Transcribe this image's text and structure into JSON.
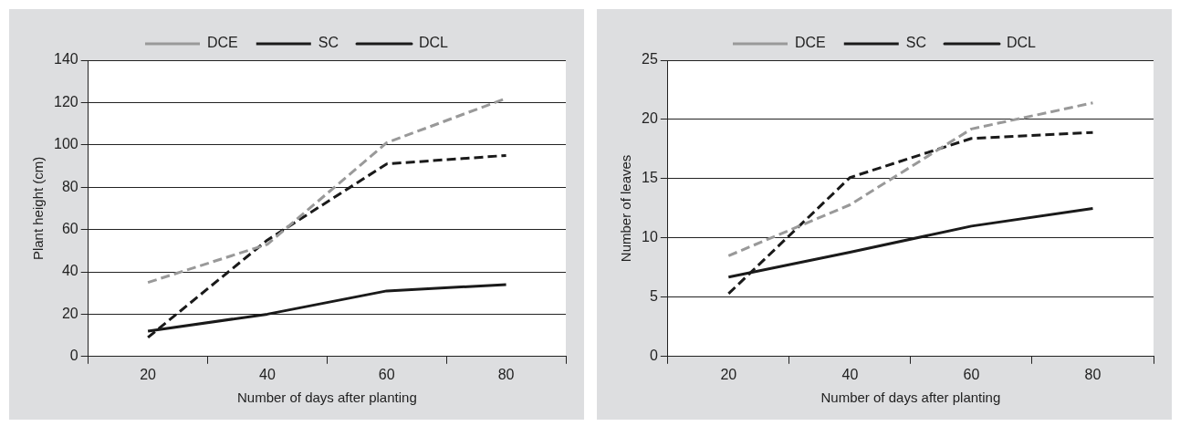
{
  "chart_data": [
    {
      "type": "line",
      "xlabel": "Number of days after planting",
      "ylabel": "Plant height (cm)",
      "categories": [
        "20",
        "40",
        "60",
        "80"
      ],
      "ylim": [
        0,
        140
      ],
      "yticks": [
        0,
        20,
        40,
        60,
        80,
        100,
        120,
        140
      ],
      "grid": "y",
      "legend": "top",
      "series": [
        {
          "name": "DCE",
          "color": "#999999",
          "line_style": "dashed",
          "values": [
            35,
            53,
            101,
            122
          ]
        },
        {
          "name": "SC",
          "color": "#1a1a1a",
          "line_style": "dashed",
          "values": [
            9,
            55,
            91,
            95
          ]
        },
        {
          "name": "DCL",
          "color": "#1a1a1a",
          "line_style": "solid",
          "values": [
            12,
            20,
            31,
            34
          ]
        }
      ]
    },
    {
      "type": "line",
      "xlabel": "Number of days after planting",
      "ylabel": "Number of leaves",
      "categories": [
        "20",
        "40",
        "60",
        "80"
      ],
      "ylim": [
        0,
        25
      ],
      "yticks": [
        0,
        5,
        10,
        15,
        20,
        25
      ],
      "grid": "y",
      "legend": "top",
      "series": [
        {
          "name": "DCE",
          "color": "#999999",
          "line_style": "dashed",
          "values": [
            8.5,
            12.8,
            19.2,
            21.4
          ]
        },
        {
          "name": "SC",
          "color": "#1a1a1a",
          "line_style": "dashed",
          "values": [
            5.3,
            15.1,
            18.4,
            18.9
          ]
        },
        {
          "name": "DCL",
          "color": "#1a1a1a",
          "line_style": "solid",
          "values": [
            6.7,
            8.8,
            11,
            12.5
          ]
        }
      ]
    }
  ]
}
